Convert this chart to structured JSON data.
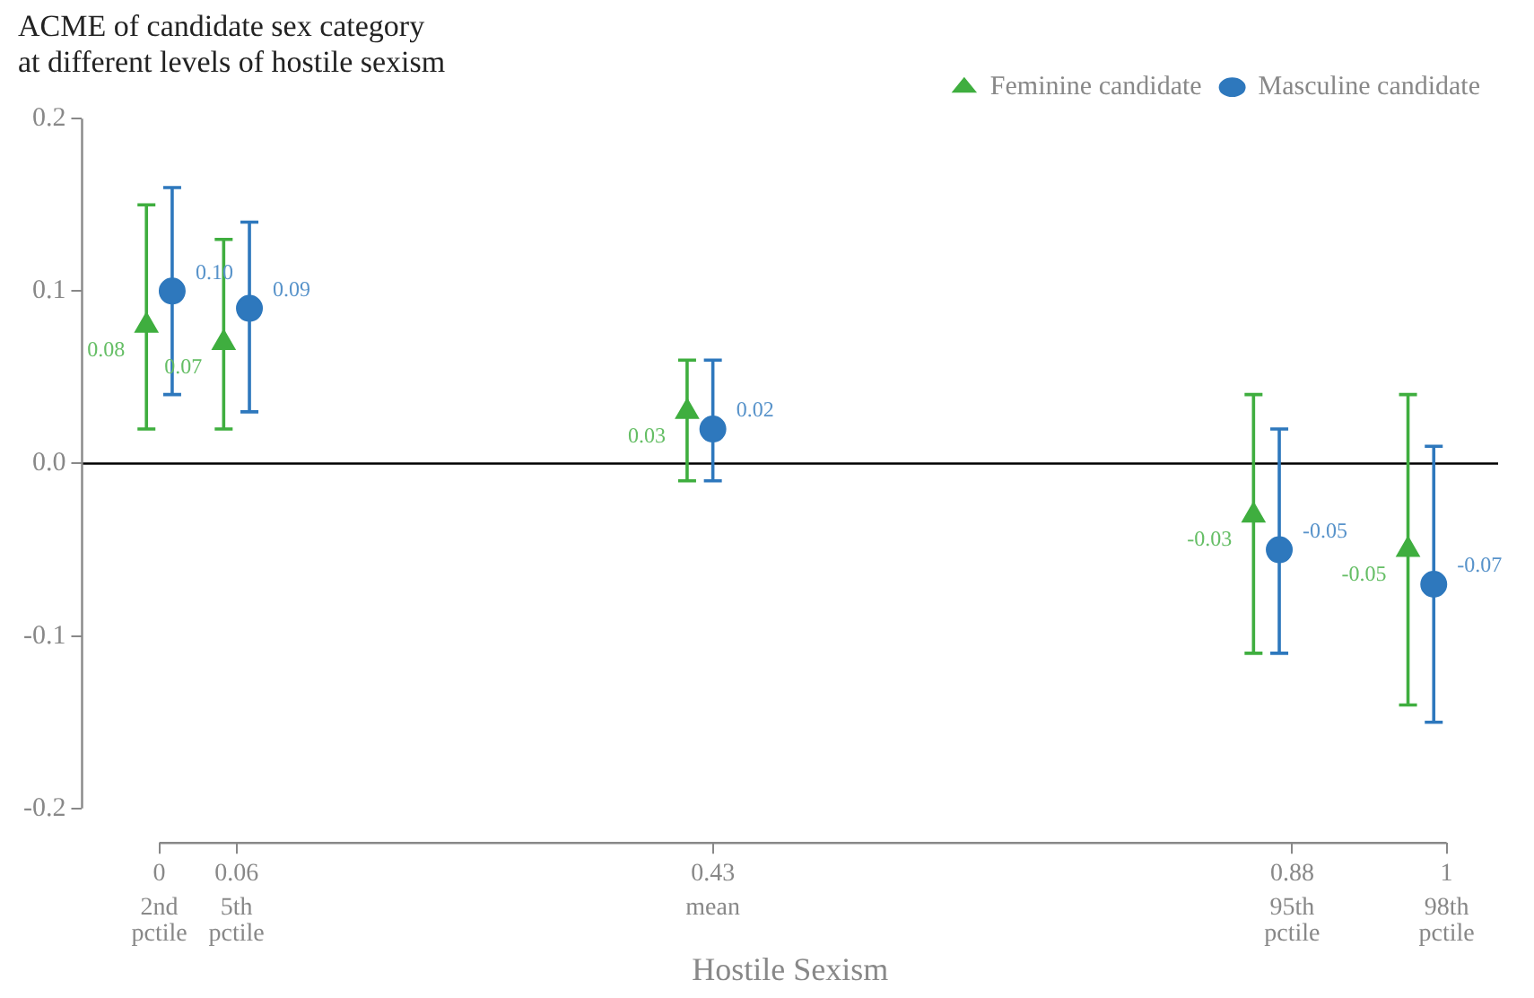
{
  "chart_data": {
    "type": "scatter",
    "title": "ACME of candidate sex category\nat different levels of hostile sexism",
    "xlabel": "Hostile Sexism",
    "xlim": [
      -0.06,
      1.04
    ],
    "ylim": [
      -0.22,
      0.2
    ],
    "xticks": [
      0,
      0.06,
      0.43,
      0.88,
      1
    ],
    "annotations": [
      "2nd\npctile",
      "5th\npctile",
      "mean",
      "95th\npctile",
      "98th\npctile"
    ],
    "yticks": [
      {
        "value": -0.2,
        "label": "-0.2"
      },
      {
        "value": -0.1,
        "label": "-0.1"
      },
      {
        "value": 0,
        "label": "0.0"
      },
      {
        "value": 0.1,
        "label": "0.1"
      },
      {
        "value": 0.2,
        "label": "0.2"
      }
    ],
    "legend": "top right",
    "ref_lines": [
      {
        "axis": "y",
        "value": 0,
        "color": "#000000"
      }
    ],
    "series": [
      {
        "name": "Feminine candidate",
        "color": "#3fae3f",
        "marker": "triangle",
        "x": [
          -0.01,
          0.05,
          0.41,
          0.85,
          0.97
        ],
        "values": [
          0.08,
          0.07,
          0.03,
          -0.03,
          -0.05
        ],
        "value_labels": [
          "0.08",
          "0.07",
          "0.03",
          "-0.03",
          "-0.05"
        ],
        "errors": [
          [
            0.02,
            0.15
          ],
          [
            0.02,
            0.13
          ],
          [
            -0.01,
            0.06
          ],
          [
            -0.11,
            0.04
          ],
          [
            -0.14,
            0.04
          ]
        ]
      },
      {
        "name": "Masculine candidate",
        "color": "#2e78bd",
        "marker": "circle",
        "x": [
          0.01,
          0.07,
          0.43,
          0.87,
          0.99
        ],
        "values": [
          0.1,
          0.09,
          0.02,
          -0.05,
          -0.07
        ],
        "value_labels": [
          "0.10",
          "0.09",
          "0.02",
          "-0.05",
          "-0.07"
        ],
        "errors": [
          [
            0.04,
            0.16
          ],
          [
            0.03,
            0.14
          ],
          [
            -0.01,
            0.06
          ],
          [
            -0.11,
            0.02
          ],
          [
            -0.15,
            0.01
          ]
        ]
      }
    ]
  }
}
